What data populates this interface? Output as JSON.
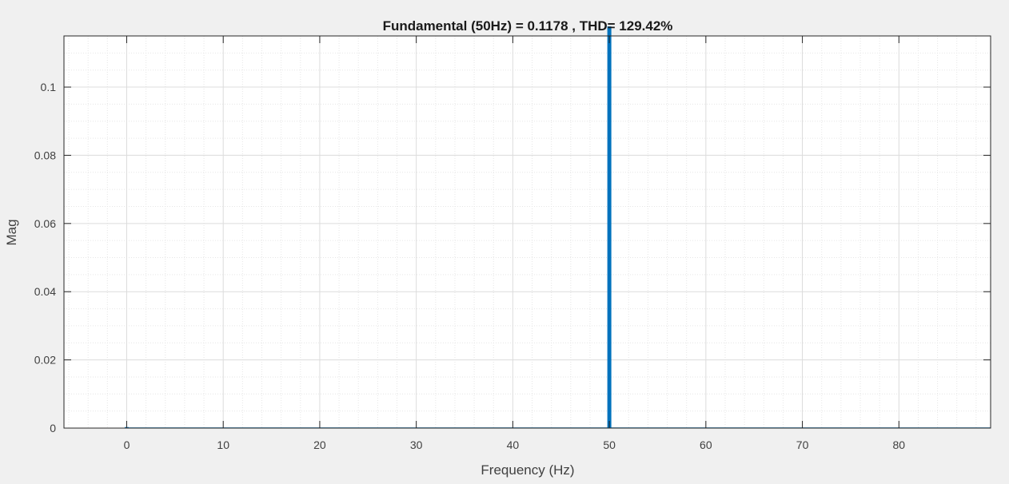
{
  "chart_data": {
    "type": "bar",
    "title": "Fundamental (50Hz) = 0.1178 , THD= 129.42%",
    "xlabel": "Frequency (Hz)",
    "ylabel": "Mag",
    "xlim": [
      -6.5,
      89.5
    ],
    "ylim": [
      0,
      0.115
    ],
    "xticks": [
      0,
      10,
      20,
      30,
      40,
      50,
      60,
      70,
      80
    ],
    "xtick_labels": [
      "0",
      "10",
      "20",
      "30",
      "40",
      "50",
      "60",
      "70",
      "80"
    ],
    "yticks": [
      0,
      0.02,
      0.04,
      0.06,
      0.08,
      0.1
    ],
    "ytick_labels": [
      "0",
      "0.02",
      "0.04",
      "0.06",
      "0.08",
      "0.1"
    ],
    "grid": true,
    "minor_grid": true,
    "series": [
      {
        "color": "#0072bd",
        "x": [
          0,
          50
        ],
        "values": [
          0.0003,
          0.1178
        ]
      }
    ]
  },
  "colors": {
    "bar": "#0072bd",
    "plot_background": "#ffffff",
    "figure_background": "#f0f0f0",
    "axes": "#262626",
    "grid": "#dcdcdc"
  }
}
